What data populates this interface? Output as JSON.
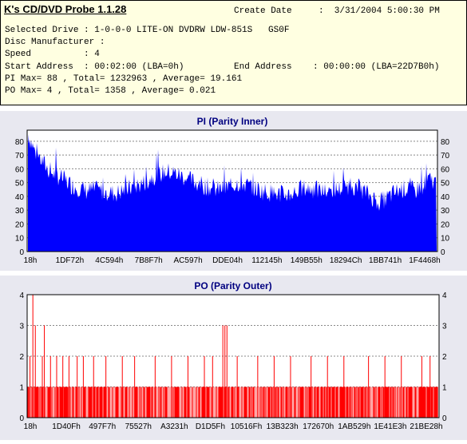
{
  "info": {
    "title": "K's CD/DVD Probe 1.1.28",
    "create_date_label": "Create Date",
    "create_date_value": ":  3/31/2004 5:00:30 PM",
    "selected_drive": "Selected Drive : 1-0-0-0 LITE-ON DVDRW LDW-851S   GS0F",
    "disc_manufacturer": "Disc Manufacturer :",
    "speed": "Speed          : 4",
    "start_address": "Start Address  : 00:02:00 (LBA=0h)",
    "end_address": "End Address    : 00:00:00 (LBA=22D7B0h)",
    "pi_stats": "PI Max= 88 , Total= 1232963 , Average= 19.161",
    "po_stats": "PO Max= 4 , Total= 1358 , Average= 0.021"
  },
  "colors": {
    "pi": "#0000ff",
    "po": "#ff0000",
    "title": "#000080",
    "plot_bg": "#ffffff",
    "panel_bg": "#e8e8f0"
  },
  "chart_data": [
    {
      "type": "area",
      "title": "PI (Parity Inner)",
      "ylim": [
        0,
        88
      ],
      "yticks": [
        0,
        10,
        20,
        30,
        40,
        50,
        60,
        70,
        80
      ],
      "xtick_labels": [
        "18h",
        "1DF72h",
        "4C594h",
        "7B8F7h",
        "AC597h",
        "DDE04h",
        "112145h",
        "149B55h",
        "18294Ch",
        "1BB741h",
        "1F4468h"
      ],
      "grid": true,
      "profile": [
        85,
        72,
        65,
        58,
        55,
        52,
        48,
        46,
        44,
        45,
        44,
        43,
        42,
        44,
        46,
        48,
        50,
        54,
        56,
        58,
        57,
        55,
        52,
        50,
        48,
        46,
        45,
        46,
        48,
        50,
        48,
        46,
        44,
        43,
        42,
        41,
        42,
        44,
        46,
        45,
        44,
        43,
        45,
        46,
        48,
        47,
        44,
        40,
        36,
        38,
        42,
        45,
        46,
        44,
        48,
        52,
        50
      ]
    },
    {
      "type": "bar",
      "title": "PO (Parity Outer)",
      "ylim": [
        0,
        4
      ],
      "yticks": [
        0,
        1,
        2,
        3,
        4
      ],
      "xtick_labels": [
        "18h",
        "1D40Fh",
        "497F7h",
        "75527h",
        "A3231h",
        "D1D5Fh",
        "10516Fh",
        "13B323h",
        "172670h",
        "1AB529h",
        "1E41E3h",
        "21BE28h"
      ],
      "grid": true,
      "spikes": [
        {
          "at": 0.005,
          "value": 2
        },
        {
          "at": 0.012,
          "value": 4
        },
        {
          "at": 0.018,
          "value": 3
        },
        {
          "at": 0.035,
          "value": 2
        },
        {
          "at": 0.04,
          "value": 3
        },
        {
          "at": 0.055,
          "value": 2
        },
        {
          "at": 0.07,
          "value": 2
        },
        {
          "at": 0.085,
          "value": 2
        },
        {
          "at": 0.1,
          "value": 2
        },
        {
          "at": 0.12,
          "value": 2
        },
        {
          "at": 0.135,
          "value": 2
        },
        {
          "at": 0.16,
          "value": 2
        },
        {
          "at": 0.19,
          "value": 2
        },
        {
          "at": 0.23,
          "value": 2
        },
        {
          "at": 0.26,
          "value": 2
        },
        {
          "at": 0.31,
          "value": 2
        },
        {
          "at": 0.35,
          "value": 2
        },
        {
          "at": 0.39,
          "value": 2
        },
        {
          "at": 0.43,
          "value": 2
        },
        {
          "at": 0.45,
          "value": 2
        },
        {
          "at": 0.475,
          "value": 3
        },
        {
          "at": 0.48,
          "value": 3
        },
        {
          "at": 0.485,
          "value": 3
        },
        {
          "at": 0.51,
          "value": 2
        },
        {
          "at": 0.56,
          "value": 2
        },
        {
          "at": 0.6,
          "value": 2
        },
        {
          "at": 0.64,
          "value": 2
        },
        {
          "at": 0.69,
          "value": 2
        },
        {
          "at": 0.73,
          "value": 2
        },
        {
          "at": 0.77,
          "value": 2
        },
        {
          "at": 0.83,
          "value": 2
        },
        {
          "at": 0.87,
          "value": 2
        },
        {
          "at": 0.91,
          "value": 2
        },
        {
          "at": 0.96,
          "value": 2
        },
        {
          "at": 0.98,
          "value": 2
        }
      ]
    }
  ]
}
